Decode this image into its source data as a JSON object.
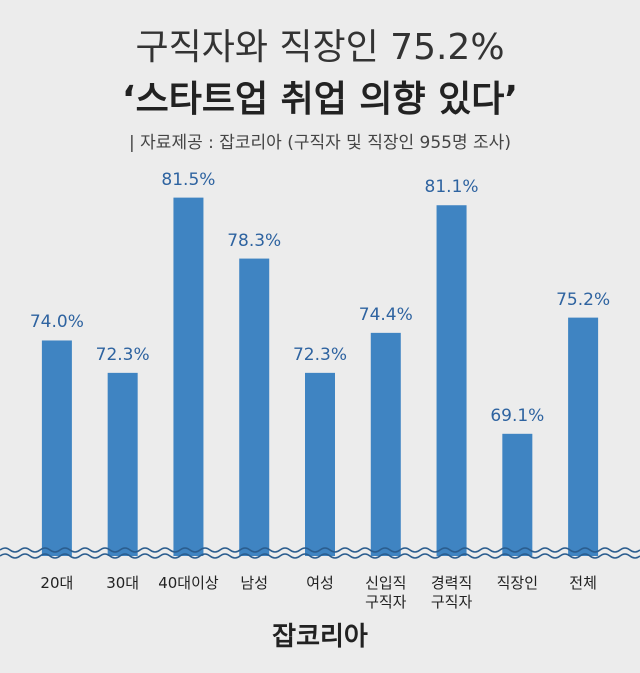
{
  "chart_data": {
    "type": "bar",
    "title": "구직자와 직장인 75.2%",
    "subtitle": "‘스타트업 취업 의향 있다’",
    "source": "| 자료제공 : 잡코리아 (구직자 및 직장인 955명 조사)",
    "footer": "잡코리아",
    "categories": [
      "20대",
      "30대",
      "40대이상",
      "남성",
      "여성",
      "신입직\n구직자",
      "경력직\n구직자",
      "직장인",
      "전체"
    ],
    "values": [
      74.0,
      72.3,
      81.5,
      78.3,
      72.3,
      74.4,
      81.1,
      69.1,
      75.2
    ],
    "value_labels": [
      "74.0%",
      "72.3%",
      "81.5%",
      "78.3%",
      "72.3%",
      "74.4%",
      "81.1%",
      "69.1%",
      "75.2%"
    ],
    "color": "#3f84c2",
    "ylim": [
      63,
      84
    ]
  }
}
